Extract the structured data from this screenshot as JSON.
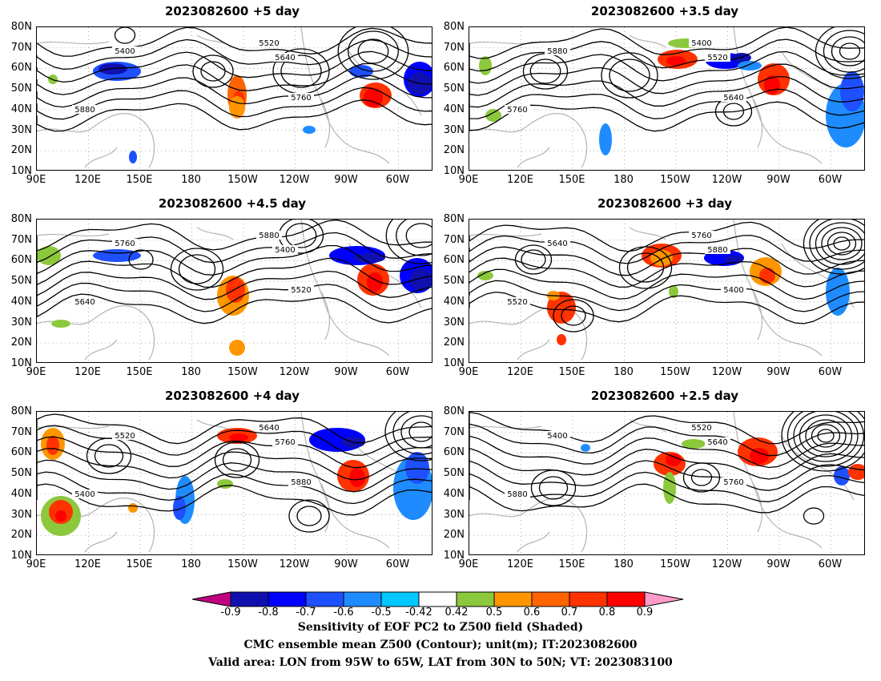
{
  "panels": [
    {
      "title": "2023082600 +5 day"
    },
    {
      "title": "2023082600 +3.5 day"
    },
    {
      "title": "2023082600 +4.5 day"
    },
    {
      "title": "2023082600 +3 day"
    },
    {
      "title": "2023082600 +4 day"
    },
    {
      "title": "2023082600 +2.5 day"
    }
  ],
  "axes": {
    "lat_labels": [
      "80N",
      "70N",
      "60N",
      "50N",
      "40N",
      "30N",
      "20N",
      "10N"
    ],
    "lon_labels": [
      "90E",
      "120E",
      "150E",
      "180",
      "150W",
      "120W",
      "90W",
      "60W"
    ]
  },
  "contour_labels": [
    "5400",
    "5520",
    "5640",
    "5760",
    "5880"
  ],
  "colorbar": {
    "ticks": [
      "-0.9",
      "-0.8",
      "-0.7",
      "-0.6",
      "-0.5",
      "-0.42",
      "0.42",
      "0.5",
      "0.6",
      "0.7",
      "0.8",
      "0.9"
    ],
    "colors": [
      "#c00080",
      "#1010b0",
      "#0000ff",
      "#1e50ff",
      "#1e8cff",
      "#00c8ff",
      "#ffffff",
      "#8cc83c",
      "#ff9600",
      "#ff6400",
      "#ff3200",
      "#ff0000",
      "#ff9bc8"
    ]
  },
  "captions": {
    "line1": "Sensitivity of EOF PC2 to Z500 field (Shaded)",
    "line2": "CMC ensemble mean Z500 (Contour); unit(m); IT:2023082600",
    "line3": "Valid area: LON from 95W to 65W, LAT from 30N to 50N; VT: 2023083100"
  }
}
